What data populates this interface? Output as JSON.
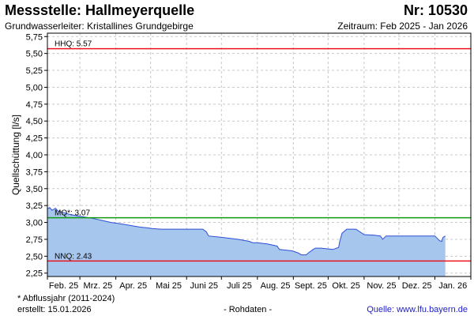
{
  "header": {
    "title": "Messstelle: Hallmeyerquelle",
    "number": "Nr: 10530",
    "aquifer": "Grundwasserleiter: Kristallines Grundgebirge",
    "period": "Zeitraum: Feb 2025 - Jan 2026"
  },
  "footer": {
    "note": "* Abflussjahr (2011-2024)",
    "created": "erstellt:  15.01.2026",
    "raw": "- Rohdaten -",
    "source": "Quelle: www.lfu.bayern.de"
  },
  "colors": {
    "fill": "#a7c6ee",
    "line": "#2b4fd6",
    "hhq": "#e8141e",
    "mq": "#109a10",
    "nnq": "#e8141e",
    "grid": "#c8c8c8"
  },
  "chart_data": {
    "type": "area",
    "ylabel": "Quellschüttung [l/s]",
    "xlabel": "",
    "ylim": [
      2.2,
      5.8
    ],
    "yticks": [
      "2,25",
      "2,50",
      "2,75",
      "3,00",
      "3,25",
      "3,50",
      "3,75",
      "4,00",
      "4,25",
      "4,50",
      "4,75",
      "5,00",
      "5,25",
      "5,50",
      "5,75"
    ],
    "ytick_values": [
      2.25,
      2.5,
      2.75,
      3.0,
      3.25,
      3.5,
      3.75,
      4.0,
      4.25,
      4.5,
      4.75,
      5.0,
      5.25,
      5.5,
      5.75
    ],
    "xticks": [
      "Feb. 25",
      "Mrz. 25",
      "Apr. 25",
      "Mai 25",
      "Juni 25",
      "Juli 25",
      "Aug. 25",
      "Sept. 25",
      "Okt. 25",
      "Nov. 25",
      "Dez. 25",
      "Jan. 26"
    ],
    "xlim": [
      "2025-02-01",
      "2026-02-01"
    ],
    "grid": true,
    "reference_lines": [
      {
        "label": "HHQ: 5.57",
        "value": 5.57,
        "color": "#e8141e"
      },
      {
        "label": "MQ*: 3.07",
        "value": 3.07,
        "color": "#109a10"
      },
      {
        "label": "NNQ: 2.43",
        "value": 2.43,
        "color": "#e8141e"
      }
    ],
    "series": [
      {
        "x": [
          "2025-02-01",
          "2025-02-03",
          "2025-02-05",
          "2025-02-08",
          "2025-02-10",
          "2025-02-14",
          "2025-02-20",
          "2025-02-26",
          "2025-03-05",
          "2025-03-12",
          "2025-03-20",
          "2025-03-28",
          "2025-04-05",
          "2025-04-15",
          "2025-04-22",
          "2025-04-28",
          "2025-05-02",
          "2025-05-10",
          "2025-05-25",
          "2025-06-05",
          "2025-06-15",
          "2025-06-18",
          "2025-06-20",
          "2025-07-01",
          "2025-07-15",
          "2025-07-25",
          "2025-07-28",
          "2025-08-01",
          "2025-08-10",
          "2025-08-18",
          "2025-08-20",
          "2025-08-31",
          "2025-09-05",
          "2025-09-08",
          "2025-09-12",
          "2025-09-14",
          "2025-09-18",
          "2025-09-20",
          "2025-09-25",
          "2025-10-05",
          "2025-10-10",
          "2025-10-11",
          "2025-10-13",
          "2025-10-17",
          "2025-10-22",
          "2025-10-25",
          "2025-11-01",
          "2025-11-10",
          "2025-11-15",
          "2025-11-17",
          "2025-11-20",
          "2025-12-01",
          "2025-12-15",
          "2026-01-01",
          "2026-01-05",
          "2026-01-07",
          "2026-01-08",
          "2026-01-10"
        ],
        "y": [
          3.2,
          3.22,
          3.18,
          3.21,
          3.17,
          3.15,
          3.12,
          3.1,
          3.08,
          3.06,
          3.03,
          3.0,
          2.98,
          2.95,
          2.93,
          2.92,
          2.91,
          2.9,
          2.9,
          2.9,
          2.9,
          2.86,
          2.8,
          2.78,
          2.75,
          2.72,
          2.7,
          2.7,
          2.68,
          2.65,
          2.6,
          2.58,
          2.55,
          2.52,
          2.52,
          2.55,
          2.6,
          2.62,
          2.62,
          2.6,
          2.63,
          2.72,
          2.84,
          2.9,
          2.9,
          2.9,
          2.82,
          2.81,
          2.8,
          2.75,
          2.8,
          2.8,
          2.8,
          2.8,
          2.73,
          2.72,
          2.78,
          2.8
        ]
      }
    ]
  }
}
